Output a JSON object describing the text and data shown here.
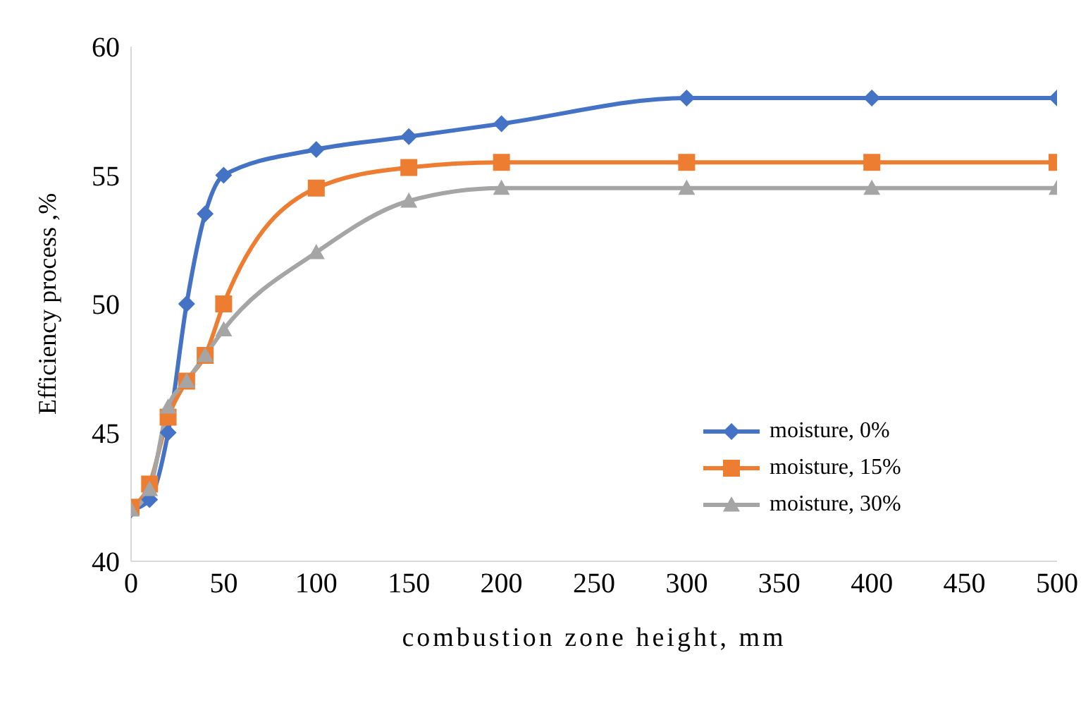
{
  "chart_data": {
    "type": "line",
    "xlabel": "combustion zone height, mm",
    "ylabel": "Efficiency process ,%",
    "x": [
      0,
      10,
      20,
      30,
      40,
      50,
      100,
      150,
      200,
      300,
      400,
      500
    ],
    "series": [
      {
        "name": "moisture, 0%",
        "color": "#4472c4",
        "marker": "diamond",
        "values": [
          42,
          42.4,
          45,
          50,
          53.5,
          55,
          56,
          56.5,
          57,
          58,
          58,
          58
        ]
      },
      {
        "name": "moisture, 15%",
        "color": "#ed7d31",
        "marker": "square",
        "values": [
          42.1,
          43,
          45.6,
          47,
          48,
          50,
          54.5,
          55.3,
          55.5,
          55.5,
          55.5,
          55.5
        ]
      },
      {
        "name": "moisture, 30%",
        "color": "#a5a5a5",
        "marker": "triangle",
        "values": [
          42,
          42.8,
          46,
          47,
          48,
          49,
          52,
          54,
          54.5,
          54.5,
          54.5,
          54.5
        ]
      }
    ],
    "xlim": [
      0,
      500
    ],
    "xticks": [
      0,
      50,
      100,
      150,
      200,
      250,
      300,
      350,
      400,
      450,
      500
    ],
    "ylim": [
      40,
      60
    ],
    "yticks": [
      40,
      45,
      50,
      55,
      60
    ],
    "grid": false,
    "legend": "bottom right",
    "line_style": "solid"
  }
}
